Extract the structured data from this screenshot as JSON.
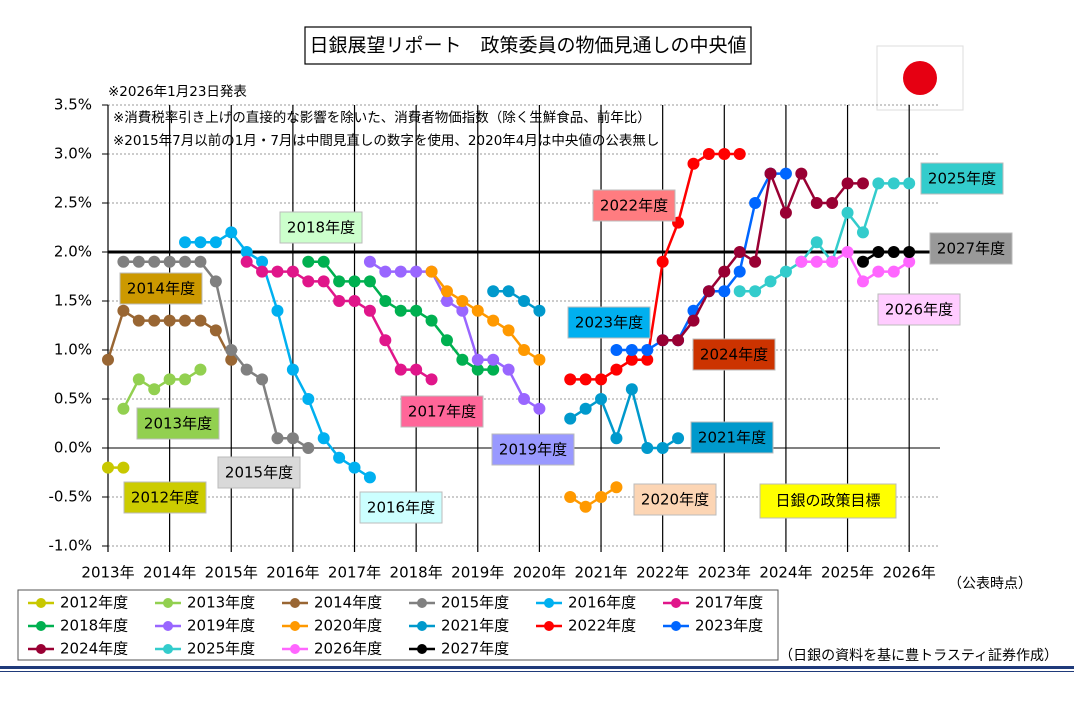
{
  "chart_data": {
    "type": "line",
    "title": "日銀展望リポート　政策委員の物価見通しの中央値",
    "release_note": "※2026年1月23日発表",
    "notes": [
      "※消費税率引き上げの直接的な影響を除いた、消費者物価指数（除く生鮮食品、前年比）",
      "※2015年7月以前の1月・7月は中間見直しの数字を使用、2020年4月は中央値の公表無し"
    ],
    "x_label": "（公表時点）",
    "source": "（日銀の資料を基に豊トラスティ証券作成）",
    "target": 2.0,
    "target_label": "日銀の政策目標",
    "xlim": [
      2013,
      2026.5
    ],
    "xticks": [
      {
        "value": 2013,
        "label": "2013年"
      },
      {
        "value": 2014,
        "label": "2014年"
      },
      {
        "value": 2015,
        "label": "2015年"
      },
      {
        "value": 2016,
        "label": "2016年"
      },
      {
        "value": 2017,
        "label": "2017年"
      },
      {
        "value": 2018,
        "label": "2018年"
      },
      {
        "value": 2019,
        "label": "2019年"
      },
      {
        "value": 2020,
        "label": "2020年"
      },
      {
        "value": 2021,
        "label": "2021年"
      },
      {
        "value": 2022,
        "label": "2022年"
      },
      {
        "value": 2023,
        "label": "2023年"
      },
      {
        "value": 2024,
        "label": "2024年"
      },
      {
        "value": 2025,
        "label": "2025年"
      },
      {
        "value": 2026,
        "label": "2026年"
      }
    ],
    "ylim": [
      -1.0,
      3.5
    ],
    "yticks": [
      {
        "value": -1.0,
        "label": "-1.0%"
      },
      {
        "value": -0.5,
        "label": "-0.5%"
      },
      {
        "value": 0,
        "label": "0.0%"
      },
      {
        "value": 0.5,
        "label": "0.5%"
      },
      {
        "value": 1.0,
        "label": "1.0%"
      },
      {
        "value": 1.5,
        "label": "1.5%"
      },
      {
        "value": 2.0,
        "label": "2.0%"
      },
      {
        "value": 2.5,
        "label": "2.5%"
      },
      {
        "value": 3.0,
        "label": "3.0%"
      },
      {
        "value": 3.5,
        "label": "3.5%"
      }
    ],
    "grid": true,
    "series": [
      {
        "name": "2012年度",
        "color": "#c8c800",
        "label_color": "#cccc00",
        "x": [
          2013,
          2013.25
        ],
        "values": [
          -0.2,
          -0.2
        ]
      },
      {
        "name": "2013年度",
        "color": "#92d050",
        "label_color": "#92d050",
        "x": [
          2013.25,
          2013.5,
          2013.75,
          2014,
          2014.25,
          2014.5
        ],
        "values": [
          0.4,
          0.7,
          0.6,
          0.7,
          0.7,
          0.8
        ]
      },
      {
        "name": "2014年度",
        "color": "#996633",
        "label_color": "#cc9900",
        "x": [
          2013,
          2013.25,
          2013.5,
          2013.75,
          2014,
          2014.25,
          2014.5,
          2014.75,
          2015
        ],
        "values": [
          0.9,
          1.4,
          1.3,
          1.3,
          1.3,
          1.3,
          1.3,
          1.2,
          0.9
        ]
      },
      {
        "name": "2015年度",
        "color": "#808080",
        "label_color": "#d9d9d9",
        "x": [
          2013.25,
          2013.5,
          2013.75,
          2014,
          2014.25,
          2014.5,
          2014.75,
          2015,
          2015.25,
          2015.5,
          2015.75,
          2016,
          2016.25
        ],
        "values": [
          1.9,
          1.9,
          1.9,
          1.9,
          1.9,
          1.9,
          1.7,
          1.0,
          0.8,
          0.7,
          0.1,
          0.1,
          0.0
        ]
      },
      {
        "name": "2016年度",
        "color": "#00b0f0",
        "label_color": "#ccffff",
        "x": [
          2014.25,
          2014.5,
          2014.75,
          2015,
          2015.25,
          2015.5,
          2015.75,
          2016,
          2016.25,
          2016.5,
          2016.75,
          2017,
          2017.25
        ],
        "values": [
          2.1,
          2.1,
          2.1,
          2.2,
          2.0,
          1.9,
          1.4,
          0.8,
          0.5,
          0.1,
          -0.1,
          -0.2,
          -0.3
        ]
      },
      {
        "name": "2017年度",
        "color": "#e0168a",
        "label_color": "#ff6699",
        "x": [
          2015.25,
          2015.5,
          2015.75,
          2016,
          2016.25,
          2016.5,
          2016.75,
          2017,
          2017.25,
          2017.5,
          2017.75,
          2018,
          2018.25
        ],
        "values": [
          1.9,
          1.8,
          1.8,
          1.8,
          1.7,
          1.7,
          1.5,
          1.5,
          1.4,
          1.1,
          0.8,
          0.8,
          0.7
        ]
      },
      {
        "name": "2018年度",
        "color": "#00b050",
        "label_color": "#ccffcc",
        "x": [
          2016.25,
          2016.5,
          2016.75,
          2017,
          2017.25,
          2017.5,
          2017.75,
          2018,
          2018.25,
          2018.5,
          2018.75,
          2019,
          2019.25
        ],
        "values": [
          1.9,
          1.9,
          1.7,
          1.7,
          1.7,
          1.5,
          1.4,
          1.4,
          1.3,
          1.1,
          0.9,
          0.8,
          0.8
        ]
      },
      {
        "name": "2019年度",
        "color": "#9966ff",
        "label_color": "#9999ff",
        "x": [
          2017.25,
          2017.5,
          2017.75,
          2018,
          2018.25,
          2018.5,
          2018.75,
          2019,
          2019.25,
          2019.5,
          2019.75,
          2020
        ],
        "values": [
          1.9,
          1.8,
          1.8,
          1.8,
          1.8,
          1.5,
          1.4,
          0.9,
          0.9,
          0.8,
          0.5,
          0.4
        ]
      },
      {
        "name": "2020年度",
        "color": "#ff9900",
        "label_color": "#fcd5b4",
        "x": [
          2018.25,
          2018.5,
          2018.75,
          2019,
          2019.25,
          2019.5,
          2019.75,
          2020,
          2020.25,
          2020.5,
          2020.75,
          2021,
          2021.25
        ],
        "values": [
          1.8,
          1.6,
          1.5,
          1.4,
          1.3,
          1.2,
          1.0,
          0.9,
          null,
          -0.5,
          -0.6,
          -0.5,
          -0.4
        ]
      },
      {
        "name": "2021年度",
        "color": "#0099cc",
        "label_color": "#0099cc",
        "x": [
          2019.25,
          2019.5,
          2019.75,
          2020,
          2020.25,
          2020.5,
          2020.75,
          2021,
          2021.25,
          2021.5,
          2021.75,
          2022,
          2022.25
        ],
        "values": [
          1.6,
          1.6,
          1.5,
          1.4,
          null,
          0.3,
          0.4,
          0.5,
          0.1,
          0.6,
          0.0,
          0.0,
          0.1
        ]
      },
      {
        "name": "2022年度",
        "color": "#ff0000",
        "label_color": "#ff7c80",
        "x": [
          2020.5,
          2020.75,
          2021,
          2021.25,
          2021.5,
          2021.75,
          2022,
          2022.25,
          2022.5,
          2022.75,
          2023,
          2023.25
        ],
        "values": [
          0.7,
          0.7,
          0.7,
          0.8,
          0.9,
          0.9,
          1.9,
          2.3,
          2.9,
          3.0,
          3.0,
          3.0
        ]
      },
      {
        "name": "2023年度",
        "color": "#0066ff",
        "label_color": "#00b0f0",
        "x": [
          2021.25,
          2021.5,
          2021.75,
          2022,
          2022.25,
          2022.5,
          2022.75,
          2023,
          2023.25,
          2023.5,
          2023.75,
          2024
        ],
        "values": [
          1.0,
          1.0,
          1.0,
          1.1,
          1.1,
          1.4,
          1.6,
          1.6,
          1.8,
          2.5,
          2.8,
          2.8
        ]
      },
      {
        "name": "2024年度",
        "color": "#990033",
        "label_color": "#cc3300",
        "x": [
          2022,
          2022.25,
          2022.5,
          2022.75,
          2023,
          2023.25,
          2023.5,
          2023.75,
          2024,
          2024.25,
          2024.5,
          2024.75,
          2025,
          2025.25
        ],
        "values": [
          1.1,
          1.1,
          1.3,
          1.6,
          1.8,
          2.0,
          1.9,
          2.8,
          2.4,
          2.8,
          2.5,
          2.5,
          2.7,
          2.7
        ]
      },
      {
        "name": "2025年度",
        "color": "#33cccc",
        "label_color": "#33cccc",
        "x": [
          2023.25,
          2023.5,
          2023.75,
          2024,
          2024.25,
          2024.5,
          2024.75,
          2025,
          2025.25,
          2025.5,
          2025.75,
          2026
        ],
        "values": [
          1.6,
          1.6,
          1.7,
          1.8,
          1.9,
          2.1,
          1.9,
          2.4,
          2.2,
          2.7,
          2.7,
          2.7
        ]
      },
      {
        "name": "2026年度",
        "color": "#ff66ff",
        "label_color": "#ffccff",
        "x": [
          2024.25,
          2024.5,
          2024.75,
          2025,
          2025.25,
          2025.5,
          2025.75,
          2026
        ],
        "values": [
          1.9,
          1.9,
          1.9,
          2.0,
          1.7,
          1.8,
          1.8,
          1.9
        ]
      },
      {
        "name": "2027年度",
        "color": "#000000",
        "label_color": "#999999",
        "x": [
          2025.25,
          2025.5,
          2025.75,
          2026
        ],
        "values": [
          1.9,
          2.0,
          2.0,
          2.0
        ]
      }
    ]
  }
}
